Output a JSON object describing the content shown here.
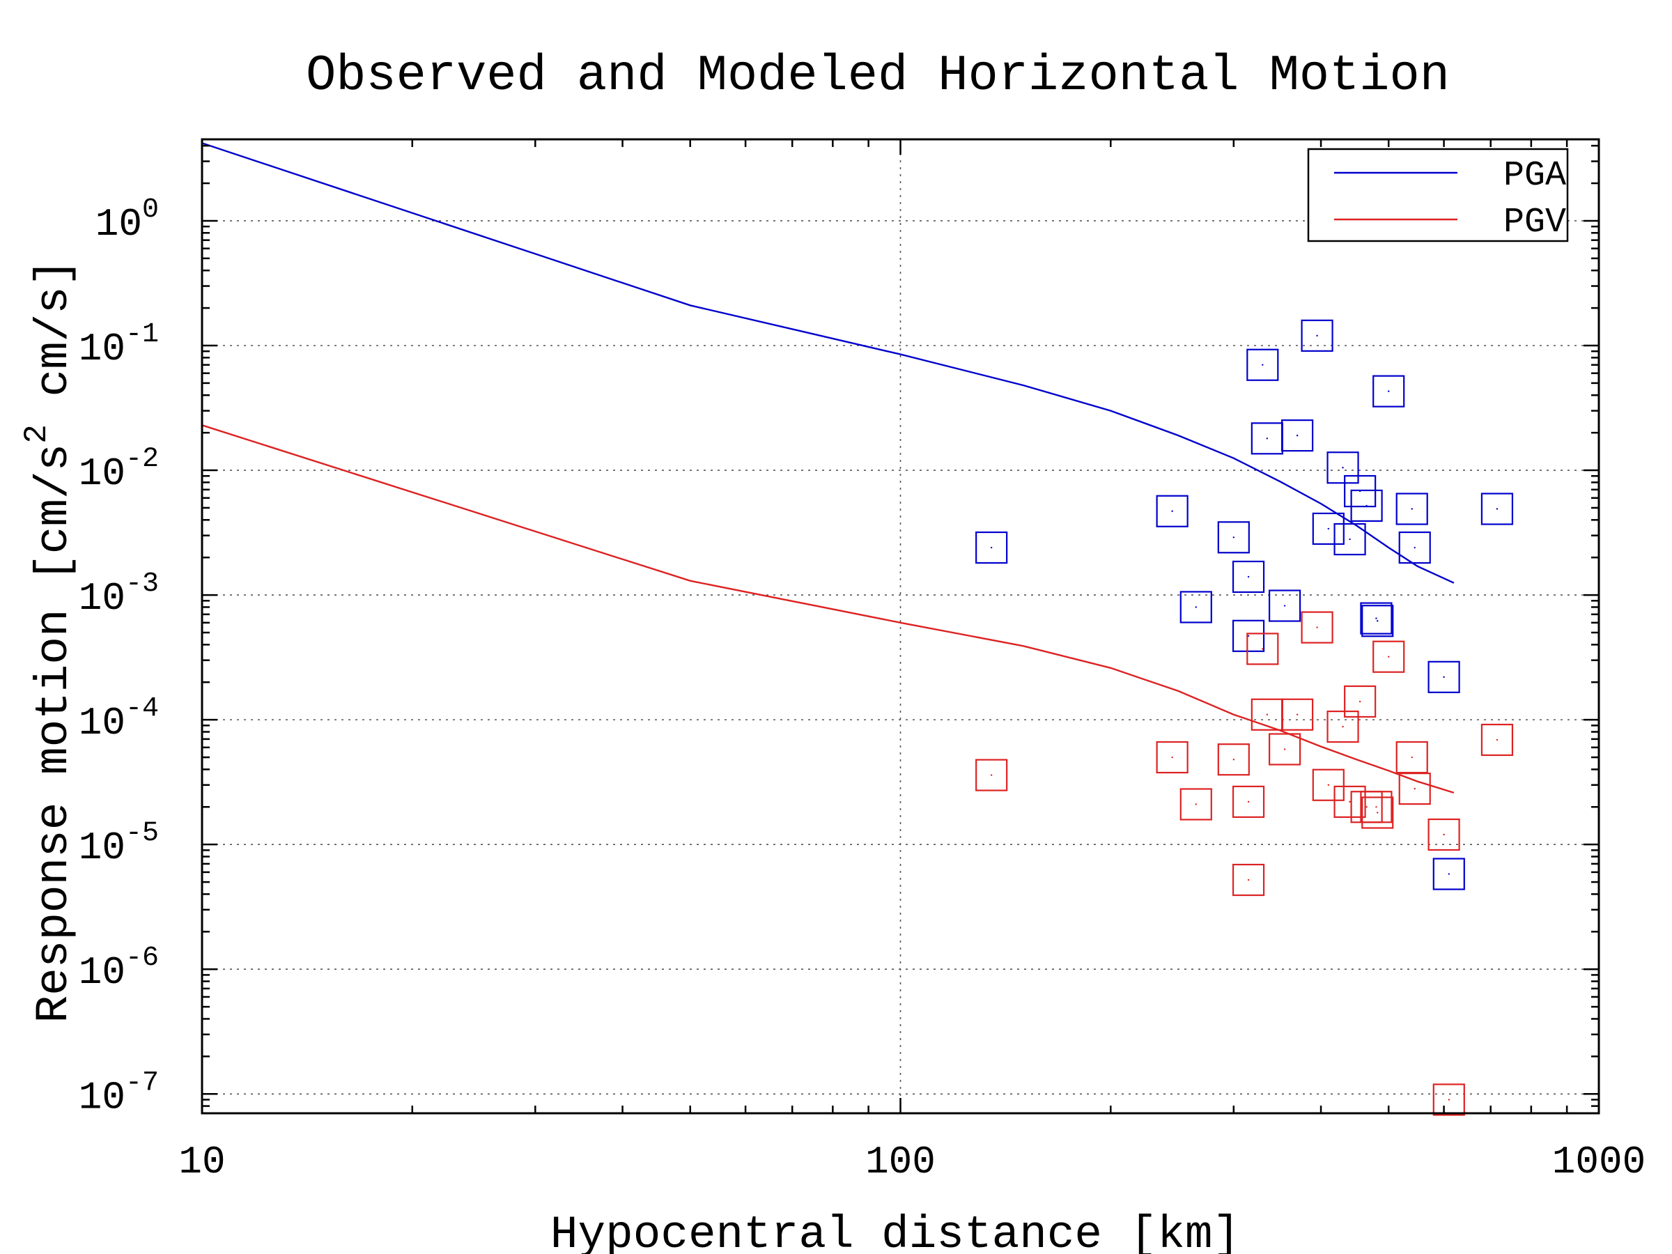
{
  "chart_data": {
    "type": "scatter",
    "title": "Observed and Modeled Horizontal Motion",
    "xlabel": "Hypocentral distance [km]",
    "ylabel_parts": [
      "Response motion [cm/s",
      "2",
      " cm/s]"
    ],
    "xscale": "log",
    "yscale": "log",
    "xlim": [
      10,
      1000
    ],
    "ylim": [
      7e-08,
      4.5
    ],
    "x_ticks": [
      {
        "value": 10,
        "label": "10"
      },
      {
        "value": 100,
        "label": "100"
      },
      {
        "value": 1000,
        "label": "1000"
      }
    ],
    "y_ticks": [
      {
        "value": 1,
        "base": "10",
        "exp": "0"
      },
      {
        "value": 0.1,
        "base": "10",
        "exp": "-1"
      },
      {
        "value": 0.01,
        "base": "10",
        "exp": "-2"
      },
      {
        "value": 0.001,
        "base": "10",
        "exp": "-3"
      },
      {
        "value": 0.0001,
        "base": "10",
        "exp": "-4"
      },
      {
        "value": 1e-05,
        "base": "10",
        "exp": "-5"
      },
      {
        "value": 1e-06,
        "base": "10",
        "exp": "-6"
      },
      {
        "value": 1e-07,
        "base": "10",
        "exp": "-7"
      }
    ],
    "grid": true,
    "legend_position": "top-right",
    "series": [
      {
        "name": "PGA",
        "color": "#0000cc",
        "model_line": [
          [
            10,
            4.2
          ],
          [
            50,
            0.21
          ],
          [
            100,
            0.085
          ],
          [
            150,
            0.048
          ],
          [
            200,
            0.03
          ],
          [
            250,
            0.019
          ],
          [
            300,
            0.0125
          ],
          [
            350,
            0.0081
          ],
          [
            400,
            0.0054
          ],
          [
            450,
            0.0036
          ],
          [
            500,
            0.0024
          ],
          [
            550,
            0.0017
          ],
          [
            620,
            0.00125
          ]
        ],
        "observed": [
          [
            135,
            0.0024
          ],
          [
            245,
            0.0047
          ],
          [
            265,
            0.0008
          ],
          [
            300,
            0.0029
          ],
          [
            315,
            0.0014
          ],
          [
            315,
            0.00047
          ],
          [
            330,
            0.07
          ],
          [
            335,
            0.018
          ],
          [
            355,
            0.00082
          ],
          [
            370,
            0.019
          ],
          [
            395,
            0.12
          ],
          [
            410,
            0.0034
          ],
          [
            430,
            0.0105
          ],
          [
            440,
            0.0028
          ],
          [
            455,
            0.0068
          ],
          [
            465,
            0.0052
          ],
          [
            480,
            0.00065
          ],
          [
            482,
            0.00062
          ],
          [
            500,
            0.043
          ],
          [
            540,
            0.0049
          ],
          [
            545,
            0.0024
          ],
          [
            600,
            0.00022
          ],
          [
            610,
            5.8e-06
          ],
          [
            715,
            0.0049
          ]
        ]
      },
      {
        "name": "PGV",
        "color": "#dd2222",
        "model_line": [
          [
            10,
            0.023
          ],
          [
            50,
            0.0013
          ],
          [
            100,
            0.0006
          ],
          [
            150,
            0.00039
          ],
          [
            200,
            0.00026
          ],
          [
            250,
            0.00017
          ],
          [
            300,
            0.00011
          ],
          [
            350,
            8.2e-05
          ],
          [
            400,
            6.1e-05
          ],
          [
            450,
            4.8e-05
          ],
          [
            500,
            3.9e-05
          ],
          [
            550,
            3.2e-05
          ],
          [
            620,
            2.6e-05
          ]
        ],
        "observed": [
          [
            135,
            3.6e-05
          ],
          [
            245,
            5e-05
          ],
          [
            265,
            2.1e-05
          ],
          [
            300,
            4.8e-05
          ],
          [
            315,
            2.2e-05
          ],
          [
            315,
            5.2e-06
          ],
          [
            330,
            0.00037
          ],
          [
            335,
            0.00011
          ],
          [
            355,
            5.8e-05
          ],
          [
            370,
            0.00011
          ],
          [
            395,
            0.00055
          ],
          [
            410,
            3e-05
          ],
          [
            430,
            8.8e-05
          ],
          [
            440,
            2.2e-05
          ],
          [
            455,
            0.00014
          ],
          [
            465,
            2e-05
          ],
          [
            480,
            2e-05
          ],
          [
            482,
            1.8e-05
          ],
          [
            500,
            0.00032
          ],
          [
            540,
            5e-05
          ],
          [
            545,
            2.8e-05
          ],
          [
            600,
            1.2e-05
          ],
          [
            610,
            9e-08
          ],
          [
            715,
            6.9e-05
          ]
        ]
      }
    ]
  }
}
